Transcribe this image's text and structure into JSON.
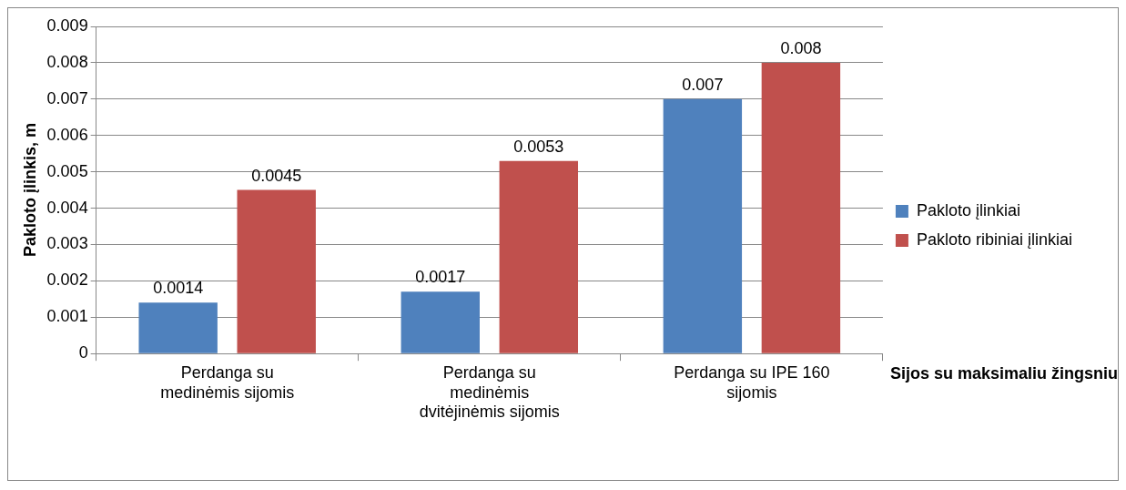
{
  "chart_data": {
    "type": "bar",
    "ylabel": "Pakloto įlinkis, m",
    "xlabel": "Sijos su maksimaliu žingsniu",
    "categories": [
      "Perdanga su medinėmis sijomis",
      "Perdanga su medinėmis dvitėjinėmis sijomis",
      "Perdanga su IPE 160 sijomis"
    ],
    "series": [
      {
        "name": "Pakloto įlinkiai",
        "color": "#4f81bd",
        "values": [
          0.0014,
          0.0017,
          0.007
        ]
      },
      {
        "name": "Pakloto ribiniai įlinkiai",
        "color": "#c0504d",
        "values": [
          0.0045,
          0.0053,
          0.008
        ]
      }
    ],
    "ylim": [
      0,
      0.009
    ],
    "yticks": [
      0,
      0.001,
      0.002,
      0.003,
      0.004,
      0.005,
      0.006,
      0.007,
      0.008,
      0.009
    ],
    "grid": "y",
    "legend": "right",
    "data_labels": true
  }
}
